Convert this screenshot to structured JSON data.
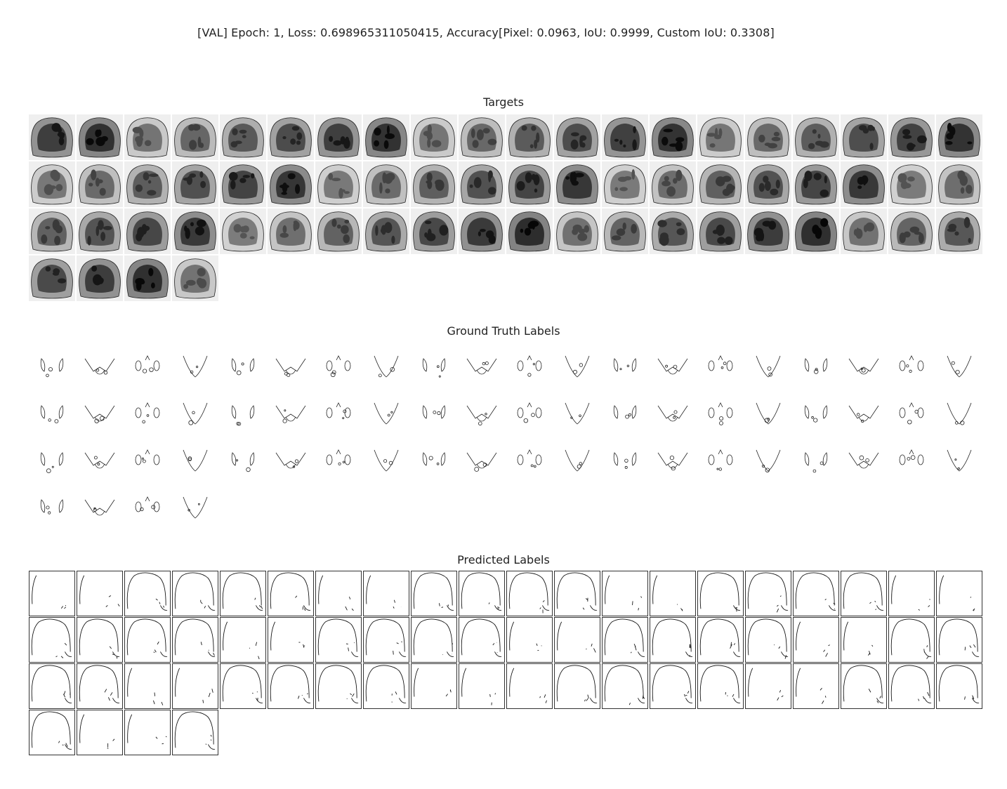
{
  "figure": {
    "title": "[VAL] Epoch: 1, Loss: 0.698965311050415, Accuracy[Pixel: 0.0963, IoU: 0.9999, Custom IoU: 0.3308]"
  },
  "panels": [
    {
      "key": "targets",
      "title": "Targets",
      "count": 64,
      "columns": 20
    },
    {
      "key": "gt",
      "title": "Ground Truth Labels",
      "count": 64,
      "columns": 20
    },
    {
      "key": "pred",
      "title": "Predicted Labels",
      "count": 64,
      "columns": 20
    }
  ]
}
